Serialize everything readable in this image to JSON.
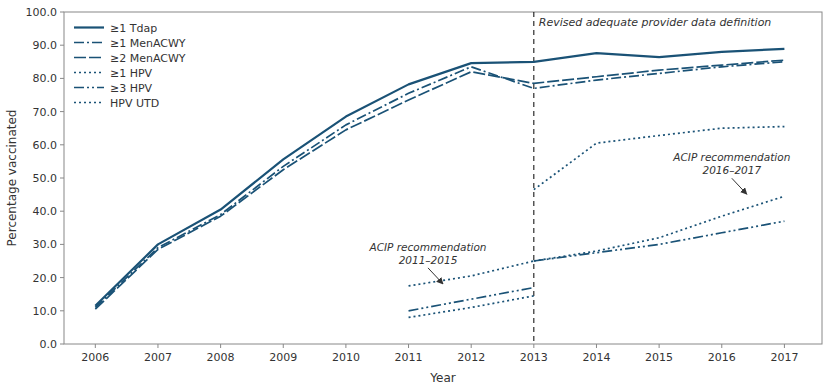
{
  "chart_data": {
    "type": "line",
    "xlabel": "Year",
    "ylabel": "Percentage vaccinated",
    "color": "#1a5276",
    "x": [
      2006,
      2007,
      2008,
      2009,
      2010,
      2011,
      2012,
      2013,
      2014,
      2015,
      2016,
      2017
    ],
    "series": [
      {
        "name": "≥1 Tdap",
        "line_style": "solid",
        "values": [
          11.5,
          30.0,
          40.5,
          55.6,
          68.5,
          78.2,
          84.6,
          85.0,
          87.6,
          86.4,
          88.0,
          88.9
        ]
      },
      {
        "name": "≥1 MenACWY",
        "line_style": "dashdot",
        "values": [
          11.0,
          29.0,
          39.0,
          53.5,
          66.0,
          75.5,
          83.5,
          77.0,
          79.5,
          81.5,
          83.5,
          85.0
        ]
      },
      {
        "name": "≥2 MenACWY",
        "line_style": "dashed",
        "values": [
          10.5,
          28.5,
          38.5,
          52.5,
          64.5,
          73.5,
          82.0,
          78.5,
          80.5,
          82.5,
          84.0,
          85.5
        ]
      },
      {
        "name": "≥1 HPV",
        "line_style": "dotted",
        "x": [
          2011,
          2012,
          2013,
          null,
          2013,
          2014,
          2015,
          2016,
          2017
        ],
        "values": [
          17.5,
          20.5,
          25.0,
          null,
          46.5,
          60.5,
          62.8,
          65.0,
          65.5
        ]
      },
      {
        "name": "≥3 HPV",
        "line_style": "dashdotdot",
        "x": [
          2011,
          2012,
          2013,
          null,
          2013,
          2014,
          2015,
          2016,
          2017
        ],
        "values": [
          10.0,
          13.5,
          17.0,
          null,
          25.0,
          27.5,
          30.0,
          33.5,
          37.0
        ]
      },
      {
        "name": "HPV UTD",
        "line_style": "dotted",
        "x": [
          2011,
          2012,
          2013,
          null,
          2013,
          2014,
          2015,
          2016,
          2017
        ],
        "values": [
          8.0,
          11.0,
          14.5,
          null,
          25.0,
          28.0,
          32.0,
          38.5,
          44.5
        ]
      }
    ],
    "vlines": [
      {
        "x": 2013,
        "label": "Revised adequate provider data definition"
      }
    ],
    "annotations": [
      {
        "text": "ACIP recommendation\n2011–2015",
        "x": 2011.55,
        "y": 17.5
      },
      {
        "text": "ACIP recommendation\n2016–2017",
        "x": 2016.4,
        "y": 44.5
      }
    ],
    "xlim": [
      2005.5,
      2017.6
    ],
    "xticks": [
      2006,
      2007,
      2008,
      2009,
      2010,
      2011,
      2012,
      2013,
      2014,
      2015,
      2016,
      2017
    ],
    "ylim": [
      0.0,
      100.0
    ],
    "yticks": [
      {
        "value": 0.0,
        "label": "0.0"
      },
      {
        "value": 10.0,
        "label": "10.0"
      },
      {
        "value": 20.0,
        "label": "20.0"
      },
      {
        "value": 30.0,
        "label": "30.0"
      },
      {
        "value": 40.0,
        "label": "40.0"
      },
      {
        "value": 50.0,
        "label": "50.0"
      },
      {
        "value": 60.0,
        "label": "60.0"
      },
      {
        "value": 70.0,
        "label": "70.0"
      },
      {
        "value": 80.0,
        "label": "80.0"
      },
      {
        "value": 90.0,
        "label": "90.0"
      },
      {
        "value": 100.0,
        "label": "100.0"
      }
    ],
    "grid": false,
    "legend": "upper left"
  }
}
